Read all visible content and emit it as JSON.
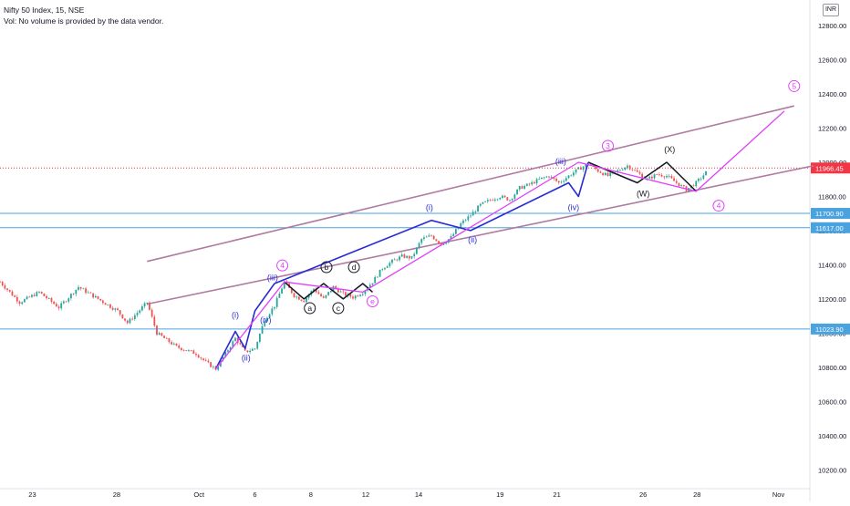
{
  "header": {
    "symbol_line": "Nifty 50 Index, 15, NSE",
    "volume_note": "Vol: No volume is provided by the data vendor.",
    "currency": "INR"
  },
  "colors": {
    "candle_up": "#26a69a",
    "candle_down": "#ef5350",
    "channel": "#b07aa1",
    "wave_blue": "#2b2bd6",
    "wave_magenta": "#e040fb",
    "wave_black": "#131722",
    "hline": "#4aa3df",
    "last_price": "#f23645"
  },
  "chart_data": {
    "type": "candlestick",
    "price_axis": {
      "ticks": [
        "12800.00",
        "12600.00",
        "12400.00",
        "12200.00",
        "12000.00",
        "11800.00",
        "11600.00",
        "11400.00",
        "11200.00",
        "11000.00",
        "10800.00",
        "10600.00",
        "10400.00",
        "10200.00"
      ],
      "range": [
        10100,
        12950
      ]
    },
    "time_axis": {
      "ticks": [
        "23",
        "28",
        "Oct",
        "6",
        "8",
        "12",
        "14",
        "19",
        "21",
        "26",
        "28",
        "Nov"
      ]
    },
    "last_price": {
      "label": "11966.45",
      "value": 11966.45
    },
    "horizontal_levels": [
      {
        "label": "11700.90",
        "value": 11700.9
      },
      {
        "label": "11617.00",
        "value": 11617.0
      },
      {
        "label": "11023.90",
        "value": 11023.9
      }
    ],
    "price_path": [
      [
        0,
        11300
      ],
      [
        2,
        11180
      ],
      [
        4,
        11240
      ],
      [
        6,
        11150
      ],
      [
        8,
        11270
      ],
      [
        10,
        11200
      ],
      [
        12,
        11130
      ],
      [
        13,
        11060
      ],
      [
        14,
        11120
      ],
      [
        15,
        11180
      ],
      [
        16,
        11000
      ],
      [
        18,
        10920
      ],
      [
        20,
        10880
      ],
      [
        21,
        10830
      ],
      [
        22,
        10790
      ],
      [
        23,
        10880
      ],
      [
        24,
        10970
      ],
      [
        25,
        10890
      ],
      [
        26,
        10910
      ],
      [
        27,
        11080
      ],
      [
        28,
        11160
      ],
      [
        29,
        11300
      ],
      [
        30,
        11220
      ],
      [
        31,
        11190
      ],
      [
        32,
        11260
      ],
      [
        33,
        11200
      ],
      [
        34,
        11270
      ],
      [
        35,
        11230
      ],
      [
        36,
        11210
      ],
      [
        37,
        11240
      ],
      [
        38,
        11300
      ],
      [
        39,
        11380
      ],
      [
        40,
        11420
      ],
      [
        41,
        11450
      ],
      [
        42,
        11440
      ],
      [
        43,
        11550
      ],
      [
        44,
        11570
      ],
      [
        45,
        11520
      ],
      [
        46,
        11560
      ],
      [
        47,
        11640
      ],
      [
        48,
        11690
      ],
      [
        49,
        11750
      ],
      [
        50,
        11780
      ],
      [
        51,
        11800
      ],
      [
        52,
        11780
      ],
      [
        53,
        11850
      ],
      [
        54,
        11870
      ],
      [
        55,
        11900
      ],
      [
        56,
        11920
      ],
      [
        57,
        11880
      ],
      [
        58,
        11920
      ],
      [
        59,
        11960
      ],
      [
        60,
        11990
      ],
      [
        61,
        11950
      ],
      [
        62,
        11920
      ],
      [
        63,
        11950
      ],
      [
        64,
        11980
      ],
      [
        65,
        11940
      ],
      [
        66,
        11900
      ],
      [
        67,
        11930
      ],
      [
        68,
        11920
      ],
      [
        69,
        11880
      ],
      [
        70,
        11840
      ],
      [
        71,
        11880
      ],
      [
        72,
        11940
      ]
    ],
    "waves": {
      "primary": [
        [
          22,
          10790
        ],
        [
          29,
          11300
        ],
        [
          37,
          11240
        ],
        [
          59,
          12000
        ],
        [
          71,
          11830
        ],
        [
          80,
          12300
        ]
      ],
      "minor": [
        [
          22,
          10790
        ],
        [
          24,
          11010
        ],
        [
          25,
          10910
        ],
        [
          26,
          11130
        ],
        [
          28,
          11290
        ],
        [
          44,
          11660
        ],
        [
          48,
          11600
        ],
        [
          58,
          11880
        ],
        [
          59,
          11800
        ],
        [
          60,
          12000
        ]
      ],
      "correction_abc": [
        [
          29,
          11300
        ],
        [
          31,
          11200
        ],
        [
          33,
          11290
        ],
        [
          35,
          11200
        ],
        [
          37,
          11290
        ],
        [
          38,
          11240
        ]
      ],
      "correction_wxy": [
        [
          60,
          12000
        ],
        [
          65,
          11880
        ],
        [
          68,
          12000
        ],
        [
          71,
          11830
        ]
      ]
    },
    "channel": {
      "upper": [
        [
          15,
          11420
        ],
        [
          81,
          12330
        ]
      ],
      "lower": [
        [
          15,
          11170
        ],
        [
          83,
          11980
        ]
      ]
    },
    "annotations": [
      {
        "text": "(i)",
        "at": [
          24.0,
          11090
        ],
        "color": "blue"
      },
      {
        "text": "(ii)",
        "at": [
          25.1,
          10840
        ],
        "color": "blue"
      },
      {
        "text": "(iii)",
        "at": [
          27.8,
          11310
        ],
        "color": "blue"
      },
      {
        "text": "(iv)",
        "at": [
          27.1,
          11060
        ],
        "color": "blue"
      },
      {
        "text": "(i)",
        "at": [
          43.8,
          11720
        ],
        "color": "blue"
      },
      {
        "text": "(ii)",
        "at": [
          48.2,
          11530
        ],
        "color": "blue"
      },
      {
        "text": "(iii)",
        "at": [
          57.2,
          11990
        ],
        "color": "blue"
      },
      {
        "text": "(iv)",
        "at": [
          58.5,
          11720
        ],
        "color": "blue"
      },
      {
        "text": "a",
        "at": [
          31.6,
          11130
        ],
        "color": "black",
        "circle": true
      },
      {
        "text": "b",
        "at": [
          33.3,
          11370
        ],
        "color": "black",
        "circle": true
      },
      {
        "text": "c",
        "at": [
          34.5,
          11130
        ],
        "color": "black",
        "circle": true
      },
      {
        "text": "d",
        "at": [
          36.1,
          11370
        ],
        "color": "black",
        "circle": true
      },
      {
        "text": "(W)",
        "at": [
          65.6,
          11800
        ],
        "color": "black"
      },
      {
        "text": "(X)",
        "at": [
          68.3,
          12060
        ],
        "color": "black"
      },
      {
        "text": "4",
        "at": [
          28.8,
          11380
        ],
        "color": "magenta",
        "circle": true
      },
      {
        "text": "e",
        "at": [
          38.0,
          11170
        ],
        "color": "magenta",
        "circle": true
      },
      {
        "text": "3",
        "at": [
          62.0,
          12080
        ],
        "color": "magenta",
        "circle": true
      },
      {
        "text": "4",
        "at": [
          73.3,
          11730
        ],
        "color": "magenta",
        "circle": true
      },
      {
        "text": "5",
        "at": [
          81.0,
          12430
        ],
        "color": "magenta",
        "circle": true
      }
    ]
  }
}
